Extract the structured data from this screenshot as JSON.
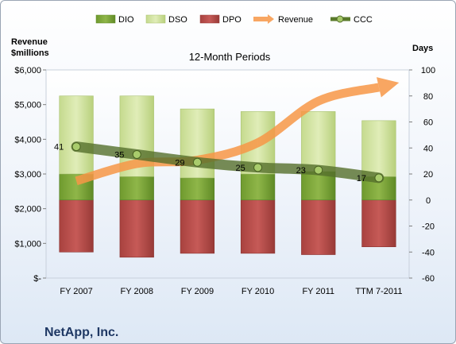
{
  "chart_data": {
    "type": "bar",
    "title": "12-Month Periods",
    "company": "NetApp, Inc.",
    "left_axis": {
      "title_line1": "Revenue",
      "title_line2": "$millions",
      "ylim": [
        0,
        6000
      ],
      "ticks": [
        0,
        1000,
        2000,
        3000,
        4000,
        5000,
        6000
      ],
      "tick_labels": [
        "$-",
        "$1,000",
        "$2,000",
        "$3,000",
        "$4,000",
        "$5,000",
        "$6,000"
      ]
    },
    "right_axis": {
      "title": "Days",
      "ylim": [
        -60,
        100
      ],
      "ticks": [
        -60,
        -40,
        -20,
        0,
        20,
        40,
        60,
        80,
        100
      ],
      "tick_labels": [
        "-60",
        "-40",
        "-20",
        "0",
        "20",
        "40",
        "60",
        "80",
        "100"
      ]
    },
    "categories": [
      "FY 2007",
      "FY 2008",
      "FY 2009",
      "FY 2010",
      "FY 2011",
      "TTM 7-2011"
    ],
    "series": [
      {
        "name": "DIO",
        "axis": "days",
        "color": "#8cb043",
        "values": [
          20,
          18,
          17,
          20,
          22,
          18
        ]
      },
      {
        "name": "DSO",
        "axis": "days",
        "color": "#d6e6a8",
        "values": [
          60,
          62,
          53,
          48,
          46,
          43
        ]
      },
      {
        "name": "DPO",
        "axis": "days",
        "color": "#c0504d",
        "values": [
          -40,
          -44,
          -41,
          -41,
          -42,
          -36
        ]
      },
      {
        "name": "Revenue",
        "axis": "revenue",
        "color": "#f79646",
        "values": [
          2800,
          3300,
          3400,
          3900,
          5100,
          5500
        ]
      },
      {
        "name": "CCC",
        "axis": "days",
        "color": "#6a8a35",
        "values": [
          41,
          35,
          29,
          25,
          23,
          17
        ]
      }
    ],
    "ccc_labels": [
      "41",
      "35",
      "29",
      "25",
      "23",
      "17"
    ],
    "legend_position": "top",
    "grid": false
  }
}
